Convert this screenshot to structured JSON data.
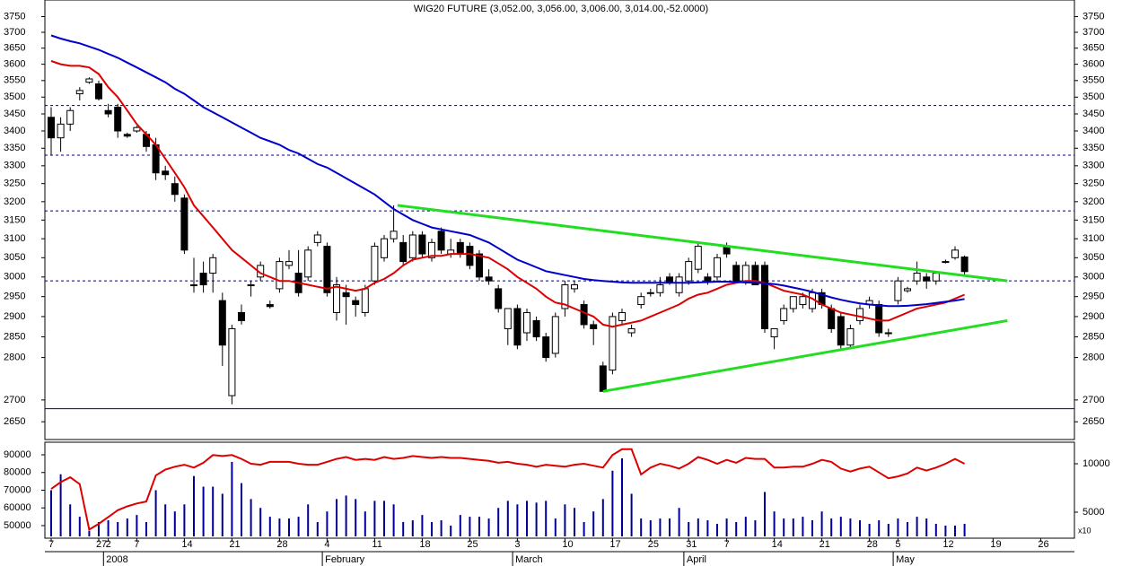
{
  "chart_data": {
    "type": "candlestick",
    "title": "WIG20 FUTURE (3,052.00, 3,056.00, 3,006.00, 3,014.00,-52.0000)",
    "log_scale": true,
    "ylim": [
      2610,
      3795
    ],
    "yticks": [
      2650,
      2700,
      2800,
      2850,
      2900,
      2950,
      3000,
      3050,
      3100,
      3150,
      3200,
      3250,
      3300,
      3350,
      3400,
      3450,
      3500,
      3550,
      3600,
      3650,
      3700,
      3750
    ],
    "categories": [
      "7",
      null,
      null,
      null,
      null,
      "27",
      "2",
      null,
      null,
      "7",
      null,
      null,
      null,
      null,
      "14",
      null,
      null,
      null,
      null,
      "21",
      null,
      null,
      null,
      null,
      "28",
      null,
      null,
      null,
      null,
      "4",
      null,
      null,
      null,
      null,
      "11",
      null,
      null,
      null,
      null,
      "18",
      null,
      null,
      null,
      null,
      "25",
      null,
      null,
      null,
      null,
      "3",
      null,
      null,
      null,
      null,
      "10",
      null,
      null,
      null,
      null,
      "17",
      null,
      null,
      null,
      "25",
      null,
      null,
      null,
      "31",
      null,
      null,
      null,
      "7",
      null,
      null,
      null,
      null,
      "14",
      null,
      null,
      null,
      null,
      "21",
      null,
      null,
      null,
      null,
      "28",
      null,
      null,
      "5",
      null,
      null,
      null,
      null,
      "12",
      null,
      null,
      null,
      null,
      "19",
      null,
      null,
      null,
      null,
      "26",
      null,
      null,
      null
    ],
    "months": [
      {
        "label": "2008",
        "start": 6
      },
      {
        "label": "February",
        "start": 29
      },
      {
        "label": "March",
        "start": 49
      },
      {
        "label": "April",
        "start": 67
      },
      {
        "label": "May",
        "start": 89
      }
    ],
    "ohlc": [
      [
        3440,
        3470,
        3330,
        3380
      ],
      [
        3380,
        3440,
        3340,
        3420
      ],
      [
        3420,
        3470,
        3400,
        3460
      ],
      [
        3510,
        3530,
        3490,
        3520
      ],
      [
        3545,
        3560,
        3540,
        3555
      ],
      [
        3540,
        3550,
        3490,
        3495
      ],
      [
        3460,
        3480,
        3440,
        3450
      ],
      [
        3470,
        3480,
        3380,
        3400
      ],
      [
        3390,
        3395,
        3380,
        3385
      ],
      [
        3400,
        3415,
        3395,
        3410
      ],
      [
        3390,
        3400,
        3340,
        3355
      ],
      [
        3360,
        3380,
        3260,
        3280
      ],
      [
        3285,
        3300,
        3260,
        3275
      ],
      [
        3250,
        3270,
        3200,
        3220
      ],
      [
        3210,
        3220,
        3060,
        3070
      ],
      [
        2980,
        3050,
        2960,
        2980
      ],
      [
        3010,
        3040,
        2960,
        2980
      ],
      [
        3010,
        3060,
        2960,
        3050
      ],
      [
        2940,
        2960,
        2780,
        2830
      ],
      [
        2710,
        2880,
        2690,
        2870
      ],
      [
        2910,
        2930,
        2880,
        2890
      ],
      [
        2980,
        2990,
        2950,
        2980
      ],
      [
        3000,
        3040,
        2990,
        3030
      ],
      [
        2930,
        2940,
        2920,
        2925
      ],
      [
        2970,
        3050,
        2960,
        3040
      ],
      [
        3030,
        3070,
        3020,
        3040
      ],
      [
        3010,
        3070,
        2950,
        2960
      ],
      [
        3000,
        3080,
        2990,
        3070
      ],
      [
        3090,
        3120,
        3080,
        3110
      ],
      [
        3080,
        3090,
        2950,
        2960
      ],
      [
        2910,
        3000,
        2890,
        2980
      ],
      [
        2960,
        2980,
        2880,
        2950
      ],
      [
        2940,
        2950,
        2900,
        2930
      ],
      [
        2910,
        2980,
        2900,
        2970
      ],
      [
        2990,
        3090,
        2980,
        3080
      ],
      [
        3050,
        3110,
        3040,
        3100
      ],
      [
        3100,
        3190,
        3090,
        3120
      ],
      [
        3090,
        3110,
        3030,
        3040
      ],
      [
        3050,
        3120,
        3040,
        3110
      ],
      [
        3110,
        3120,
        3050,
        3060
      ],
      [
        3050,
        3100,
        3040,
        3090
      ],
      [
        3120,
        3130,
        3060,
        3070
      ],
      [
        3060,
        3100,
        3050,
        3070
      ],
      [
        3090,
        3100,
        3050,
        3060
      ],
      [
        3080,
        3090,
        3020,
        3030
      ],
      [
        3060,
        3070,
        2990,
        3000
      ],
      [
        3000,
        3020,
        2980,
        2990
      ],
      [
        2970,
        2980,
        2910,
        2920
      ],
      [
        2870,
        2920,
        2830,
        2920
      ],
      [
        2920,
        2930,
        2820,
        2830
      ],
      [
        2860,
        2920,
        2840,
        2910
      ],
      [
        2890,
        2900,
        2840,
        2850
      ],
      [
        2850,
        2860,
        2790,
        2800
      ],
      [
        2810,
        2910,
        2800,
        2900
      ],
      [
        2920,
        2990,
        2900,
        2980
      ],
      [
        2970,
        2990,
        2960,
        2980
      ],
      [
        2930,
        2940,
        2870,
        2880
      ],
      [
        2880,
        2890,
        2830,
        2870
      ],
      [
        2780,
        2790,
        2720,
        2720
      ],
      [
        2770,
        2910,
        2760,
        2900
      ],
      [
        2890,
        2920,
        2880,
        2910
      ],
      [
        2860,
        2880,
        2850,
        2870
      ],
      [
        2930,
        2960,
        2920,
        2950
      ],
      [
        2960,
        2970,
        2950,
        2960
      ],
      [
        2960,
        3000,
        2950,
        2980
      ],
      [
        3000,
        3010,
        2980,
        2985
      ],
      [
        2960,
        3010,
        2950,
        3000
      ],
      [
        2990,
        3050,
        2980,
        3040
      ],
      [
        3020,
        3090,
        3010,
        3080
      ],
      [
        3000,
        3010,
        2980,
        2990
      ],
      [
        3000,
        3060,
        2990,
        3050
      ],
      [
        3080,
        3090,
        3050,
        3060
      ],
      [
        3030,
        3040,
        2990,
        2990
      ],
      [
        2990,
        3040,
        2980,
        3030
      ],
      [
        3030,
        3040,
        2980,
        2980
      ],
      [
        3030,
        3040,
        2860,
        2870
      ],
      [
        2850,
        2870,
        2820,
        2870
      ],
      [
        2890,
        2930,
        2880,
        2920
      ],
      [
        2920,
        2950,
        2910,
        2950
      ],
      [
        2930,
        2960,
        2920,
        2950
      ],
      [
        2920,
        2970,
        2910,
        2960
      ],
      [
        2960,
        2970,
        2920,
        2930
      ],
      [
        2920,
        2930,
        2860,
        2870
      ],
      [
        2900,
        2910,
        2820,
        2830
      ],
      [
        2830,
        2880,
        2820,
        2870
      ],
      [
        2890,
        2930,
        2880,
        2920
      ],
      [
        2930,
        2950,
        2920,
        2940
      ],
      [
        2930,
        2940,
        2850,
        2860
      ],
      [
        2860,
        2870,
        2850,
        2860
      ],
      [
        2940,
        3000,
        2930,
        2990
      ],
      [
        2965,
        2975,
        2960,
        2970
      ],
      [
        2990,
        3040,
        2980,
        3010
      ],
      [
        3000,
        3010,
        2970,
        2990
      ],
      [
        2990,
        3010,
        2980,
        3010
      ],
      [
        3040,
        3045,
        3035,
        3040
      ],
      [
        3050,
        3080,
        3045,
        3070
      ],
      [
        3052,
        3056,
        3006,
        3014
      ],
      null,
      null,
      null,
      null,
      null,
      null,
      null,
      null,
      null,
      null,
      null
    ],
    "series": [
      {
        "color": "#dd0000",
        "values": [
          3610,
          3600,
          3595,
          3595,
          3590,
          3570,
          3530,
          3500,
          3460,
          3420,
          3390,
          3360,
          3320,
          3280,
          3240,
          3190,
          3160,
          3130,
          3100,
          3070,
          3050,
          3030,
          3010,
          3000,
          2990,
          2990,
          2985,
          2980,
          2975,
          2970,
          2975,
          2970,
          2965,
          2970,
          2985,
          2995,
          3010,
          3030,
          3045,
          3050,
          3055,
          3055,
          3060,
          3060,
          3060,
          3055,
          3050,
          3035,
          3020,
          3000,
          2985,
          2970,
          2950,
          2935,
          2930,
          2920,
          2910,
          2900,
          2880,
          2875,
          2880,
          2885,
          2890,
          2900,
          2910,
          2920,
          2930,
          2945,
          2955,
          2960,
          2970,
          2980,
          2985,
          2990,
          2990,
          2985,
          2975,
          2965,
          2960,
          2955,
          2945,
          2930,
          2920,
          2910,
          2905,
          2900,
          2895,
          2890,
          2890,
          2900,
          2910,
          2920,
          2925,
          2930,
          2935,
          2945,
          2955,
          null,
          null,
          null,
          null,
          null,
          null,
          null,
          null,
          null,
          null,
          null
        ]
      },
      {
        "color": "#0000cc",
        "values": [
          3690,
          3680,
          3672,
          3665,
          3655,
          3645,
          3632,
          3620,
          3605,
          3590,
          3575,
          3560,
          3545,
          3525,
          3510,
          3490,
          3470,
          3455,
          3440,
          3425,
          3410,
          3395,
          3380,
          3370,
          3360,
          3345,
          3335,
          3320,
          3305,
          3295,
          3280,
          3265,
          3250,
          3235,
          3220,
          3200,
          3180,
          3165,
          3150,
          3140,
          3130,
          3125,
          3120,
          3115,
          3110,
          3100,
          3090,
          3075,
          3060,
          3045,
          3035,
          3025,
          3015,
          3010,
          3005,
          3000,
          2995,
          2992,
          2990,
          2988,
          2986,
          2985,
          2985,
          2985,
          2985,
          2985,
          2985,
          2985,
          2986,
          2987,
          2988,
          2988,
          2987,
          2986,
          2985,
          2984,
          2982,
          2978,
          2973,
          2968,
          2962,
          2955,
          2948,
          2942,
          2937,
          2933,
          2930,
          2928,
          2926,
          2926,
          2927,
          2929,
          2931,
          2934,
          2937,
          2940,
          2944,
          null,
          null,
          null,
          null,
          null,
          null,
          null,
          null,
          null,
          null,
          null
        ]
      }
    ],
    "hlines": [
      {
        "value": 3475,
        "style": "dashed",
        "color": "#000080"
      },
      {
        "value": 3330,
        "style": "dashed",
        "color": "#000080"
      },
      {
        "value": 3175,
        "style": "dashed",
        "color": "#000080"
      },
      {
        "value": 2990,
        "style": "dashed",
        "color": "#000080"
      },
      {
        "value": 2680,
        "style": "solid",
        "color": "#000080"
      }
    ],
    "trendlines": [
      {
        "color": "#22dd22",
        "points": [
          [
            36.4,
            3190
          ],
          [
            100.5,
            2990
          ]
        ]
      },
      {
        "color": "#22dd22",
        "points": [
          [
            58,
            2720
          ],
          [
            100.5,
            2890
          ]
        ]
      }
    ],
    "volume": {
      "color": "#000099",
      "ylim": [
        43900,
        96100
      ],
      "yticks": [
        50000,
        60000,
        70000,
        80000,
        90000
      ],
      "values": [
        70000,
        79000,
        62000,
        55000,
        47000,
        52000,
        53000,
        52000,
        54000,
        56000,
        52000,
        70000,
        62000,
        58000,
        62000,
        78000,
        72000,
        72000,
        68000,
        86000,
        74000,
        65000,
        60000,
        55000,
        54000,
        54000,
        55000,
        62000,
        52000,
        58000,
        65000,
        67000,
        65000,
        58000,
        64000,
        64000,
        62000,
        52000,
        53000,
        56000,
        52000,
        53000,
        50000,
        56000,
        55000,
        55000,
        54000,
        60000,
        64000,
        62000,
        64000,
        63000,
        64000,
        54000,
        62000,
        60000,
        52000,
        58000,
        65000,
        81000,
        88000,
        68000,
        54000,
        53000,
        54000,
        54000,
        60000,
        52000,
        54000,
        53000,
        51000,
        54000,
        52000,
        55000,
        53000,
        69000,
        58000,
        54000,
        54000,
        55000,
        53000,
        58000,
        54000,
        55000,
        54000,
        53000,
        51000,
        53000,
        51000,
        54000,
        52000,
        55000,
        54000,
        51000,
        50000,
        50000,
        51000,
        null,
        null,
        null,
        null,
        null,
        null,
        null,
        null,
        null,
        null,
        null
      ]
    },
    "volume_line": {
      "axis": "y2",
      "color": "#dd0000",
      "y2lim": [
        2500,
        12040
      ],
      "y2ticks": [
        5000,
        10000
      ],
      "y2_label": "x10",
      "values": [
        7400,
        8100,
        8600,
        7900,
        3200,
        3800,
        4500,
        5200,
        5600,
        5900,
        6100,
        8800,
        9400,
        9700,
        9900,
        9600,
        10100,
        10900,
        10800,
        10900,
        10500,
        10000,
        9900,
        10200,
        10200,
        10200,
        10000,
        9900,
        9900,
        10200,
        10500,
        10700,
        10400,
        10500,
        10400,
        10700,
        10500,
        10600,
        10800,
        10700,
        10600,
        10700,
        10600,
        10600,
        10500,
        10400,
        10300,
        10100,
        10200,
        10000,
        9900,
        9700,
        9900,
        9800,
        9700,
        9900,
        10000,
        9800,
        9600,
        10900,
        11500,
        11500,
        8900,
        9600,
        10000,
        9800,
        9500,
        10000,
        10700,
        10400,
        10000,
        10400,
        10100,
        10600,
        10500,
        10500,
        9600,
        9600,
        9700,
        9700,
        10000,
        10400,
        10200,
        9500,
        9200,
        9500,
        9700,
        9100,
        8500,
        8700,
        9000,
        9600,
        9300,
        9600,
        10000,
        10500,
        10000,
        null,
        null,
        null,
        null,
        null,
        null,
        null,
        null,
        null,
        null,
        null
      ]
    }
  }
}
